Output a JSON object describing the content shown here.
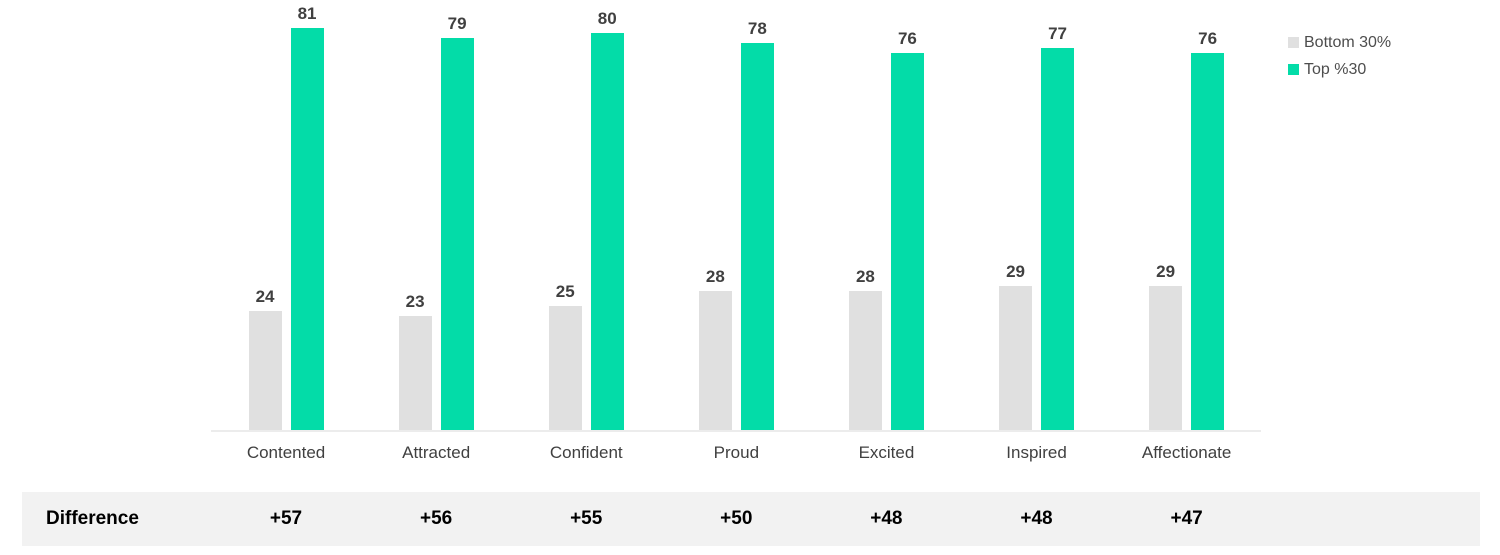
{
  "chart_data": {
    "type": "bar",
    "title": "",
    "categories": [
      "Contented",
      "Attracted",
      "Confident",
      "Proud",
      "Excited",
      "Inspired",
      "Affectionate"
    ],
    "series": [
      {
        "name": "Bottom 30%",
        "color": "#E0E0E0",
        "values": [
          24,
          23,
          25,
          28,
          28,
          29,
          29
        ]
      },
      {
        "name": "Top %30",
        "color": "#03DCA8",
        "values": [
          81,
          79,
          80,
          78,
          76,
          77,
          76
        ]
      }
    ],
    "xlabel": "",
    "ylabel": "",
    "ylim": [
      0,
      86.6
    ],
    "grid": false,
    "legend_position": "top-right",
    "value_labels": true
  },
  "difference_row": {
    "label": "Difference",
    "values": [
      "+57",
      "+56",
      "+55",
      "+50",
      "+48",
      "+48",
      "+47"
    ]
  },
  "colors": {
    "bottom30_bar": "#E0E0E0",
    "top30_bar": "#03DCA8",
    "value_label": "#404040",
    "category_label": "#404040",
    "legend_text": "#4D4D4D",
    "difference_band": "#F2F2F2",
    "difference_text": "#000000",
    "axis_line": "#ECECEC",
    "background": "#FFFFFF"
  }
}
